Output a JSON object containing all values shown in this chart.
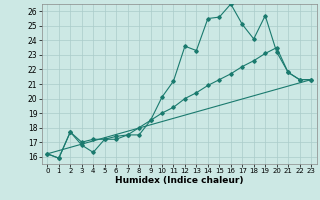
{
  "xlabel": "Humidex (Indice chaleur)",
  "bg_color": "#cce8e4",
  "grid_color": "#aaccca",
  "line_color": "#1a7a6e",
  "xlim": [
    -0.5,
    23.5
  ],
  "ylim": [
    15.5,
    26.5
  ],
  "xticks": [
    0,
    1,
    2,
    3,
    4,
    5,
    6,
    7,
    8,
    9,
    10,
    11,
    12,
    13,
    14,
    15,
    16,
    17,
    18,
    19,
    20,
    21,
    22,
    23
  ],
  "yticks": [
    16,
    17,
    18,
    19,
    20,
    21,
    22,
    23,
    24,
    25,
    26
  ],
  "line1_x": [
    0,
    1,
    2,
    3,
    4,
    5,
    6,
    7,
    8,
    9,
    10,
    11,
    12,
    13,
    14,
    15,
    16,
    17,
    18,
    19,
    20,
    21,
    22,
    23
  ],
  "line1_y": [
    16.2,
    15.9,
    17.7,
    16.8,
    16.3,
    17.2,
    17.2,
    17.5,
    17.5,
    18.5,
    20.1,
    21.2,
    23.6,
    23.3,
    25.5,
    25.6,
    26.5,
    25.1,
    24.1,
    25.7,
    23.2,
    21.8,
    21.3,
    21.3
  ],
  "line2_x": [
    0,
    23
  ],
  "line2_y": [
    16.2,
    21.3
  ],
  "line3_x": [
    0,
    1,
    2,
    3,
    4,
    5,
    6,
    7,
    8,
    9,
    10,
    11,
    12,
    13,
    14,
    15,
    16,
    17,
    18,
    19,
    20,
    21,
    22,
    23
  ],
  "line3_y": [
    16.2,
    15.9,
    17.7,
    17.0,
    17.2,
    17.2,
    17.4,
    17.5,
    18.0,
    18.5,
    19.0,
    19.4,
    20.0,
    20.4,
    20.9,
    21.3,
    21.7,
    22.2,
    22.6,
    23.1,
    23.5,
    21.8,
    21.3,
    21.3
  ],
  "marker": "D",
  "markersize": 1.8,
  "linewidth": 0.8
}
